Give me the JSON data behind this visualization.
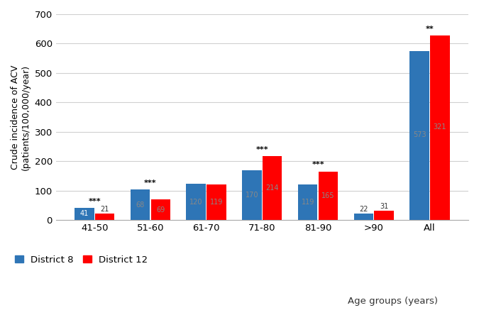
{
  "categories": [
    "41-50",
    "51-60",
    "61-70",
    "71-80",
    "81-90",
    ">90",
    "All"
  ],
  "district8": [
    41,
    103,
    122,
    170,
    120,
    22,
    575
  ],
  "district12": [
    21,
    69,
    120,
    218,
    165,
    31,
    627
  ],
  "bar_color_d8": "#2E75B6",
  "bar_color_d12": "#FF0000",
  "significance": [
    "***",
    "***",
    "",
    "***",
    "***",
    "",
    "**"
  ],
  "ylabel_line1": "Crude incidence of ACV",
  "ylabel_line2": "(patients/100,000/year)",
  "xlabel": "Age groups (years)",
  "ylim": [
    0,
    700
  ],
  "yticks": [
    0,
    100,
    200,
    300,
    400,
    500,
    600,
    700
  ],
  "legend_d8": "District 8",
  "legend_d12": "District 12",
  "background_color": "#ffffff",
  "grid_color": "#d0d0d0",
  "label_inside_color": "#888888",
  "label_outside_color": "#333333"
}
